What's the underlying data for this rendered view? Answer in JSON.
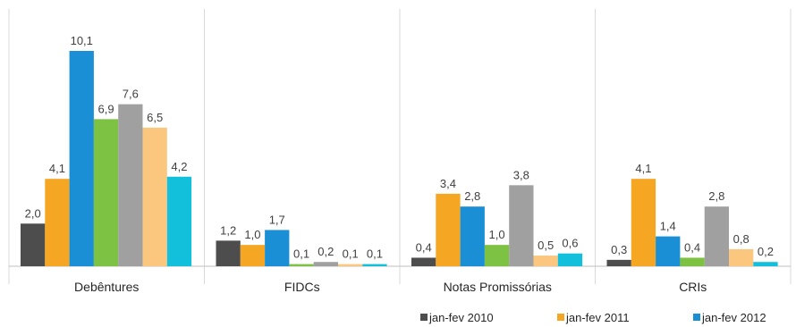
{
  "chart_data": {
    "type": "bar",
    "categories": [
      "Debêntures",
      "FIDCs",
      "Notas Promissórias",
      "CRIs"
    ],
    "series": [
      {
        "name": "jan-fev 2010",
        "color": "#4d4d4d",
        "values": [
          2.0,
          1.2,
          0.4,
          0.3
        ],
        "labels": [
          "2,0",
          "1,2",
          "0,4",
          "0,3"
        ]
      },
      {
        "name": "jan-fev 2011",
        "color": "#f5a623",
        "values": [
          4.1,
          1.0,
          3.4,
          4.1
        ],
        "labels": [
          "4,1",
          "1,0",
          "3,4",
          "4,1"
        ]
      },
      {
        "name": "jan-fev 2012",
        "color": "#1b8fd6",
        "values": [
          10.1,
          1.7,
          2.8,
          1.4
        ],
        "labels": [
          "10,1",
          "1,7",
          "2,8",
          "1,4"
        ]
      },
      {
        "name": "",
        "color": "#7dc242",
        "values": [
          6.9,
          0.1,
          1.0,
          0.4
        ],
        "labels": [
          "6,9",
          "0,1",
          "1,0",
          "0,4"
        ]
      },
      {
        "name": "",
        "color": "#a0a0a0",
        "values": [
          7.6,
          0.2,
          3.8,
          2.8
        ],
        "labels": [
          "7,6",
          "0,2",
          "3,8",
          "2,8"
        ]
      },
      {
        "name": "",
        "color": "#fbc77e",
        "values": [
          6.5,
          0.1,
          0.5,
          0.8
        ],
        "labels": [
          "6,5",
          "0,1",
          "0,5",
          "0,8"
        ]
      },
      {
        "name": "",
        "color": "#12c0dc",
        "values": [
          4.2,
          0.1,
          0.6,
          0.2
        ],
        "labels": [
          "4,2",
          "0,1",
          "0,6",
          "0,2"
        ]
      }
    ],
    "ylim": [
      0,
      10.1
    ],
    "grid": false,
    "legend_position": "bottom-right",
    "title": "",
    "xlabel": "",
    "ylabel": ""
  }
}
